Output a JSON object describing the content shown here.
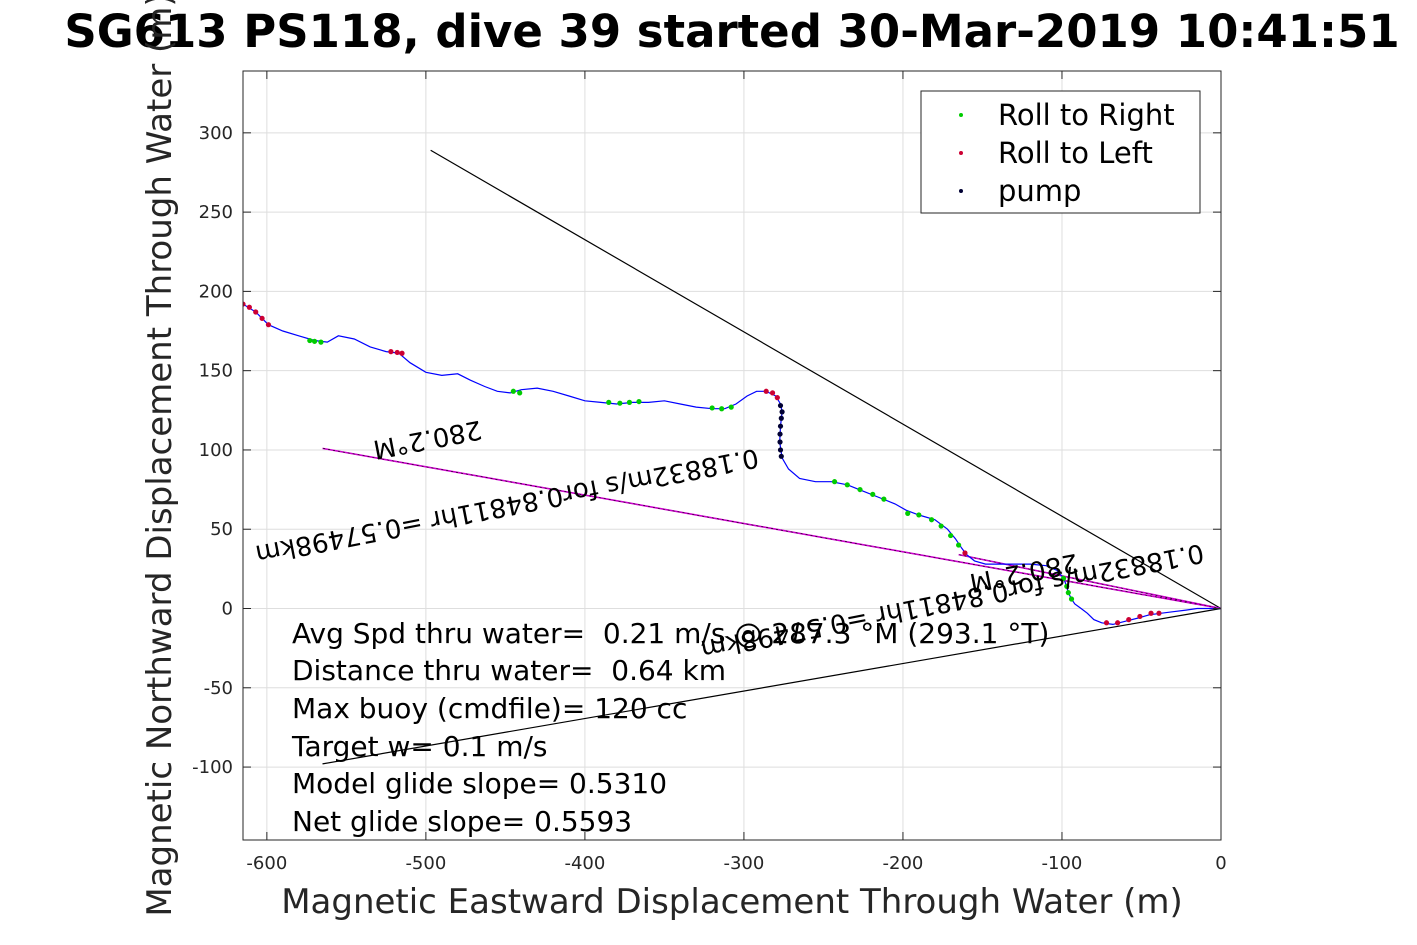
{
  "chart_data": {
    "type": "line",
    "title": "SG613 PS118, dive 39 started 30-Mar-2019 10:41:51",
    "xlabel": "Magnetic Eastward Displacement Through Water (m)",
    "ylabel": "Magnetic Northward Displacement Through Water (m)",
    "xlim": [
      -615,
      0
    ],
    "ylim": [
      -146,
      339
    ],
    "x_ticks": [
      -600,
      -500,
      -400,
      -300,
      -200,
      -100,
      0
    ],
    "y_ticks": [
      -100,
      -50,
      0,
      50,
      100,
      150,
      200,
      250,
      300
    ],
    "grid": true,
    "legend_position": "top-right",
    "legend": [
      "Roll to Right",
      "Roll to Left",
      "pump"
    ],
    "colors": {
      "track": "#0000ff",
      "roll_right": "#00cc00",
      "roll_left": "#cc0033",
      "pump": "#000033",
      "heading": "#cc00cc",
      "reference": "#000000"
    },
    "track": {
      "x": [
        -615,
        -607,
        -599,
        -590,
        -580,
        -570,
        -562,
        -555,
        -545,
        -535,
        -525,
        -517,
        -510,
        -500,
        -490,
        -480,
        -472,
        -463,
        -455,
        -447,
        -440,
        -430,
        -420,
        -410,
        -400,
        -390,
        -380,
        -370,
        -360,
        -350,
        -340,
        -330,
        -320,
        -312,
        -305,
        -298,
        -292,
        -286,
        -280,
        -277,
        -276,
        -277,
        -277.5,
        -276,
        -272,
        -265,
        -255,
        -245,
        -235,
        -225,
        -215,
        -205,
        -198,
        -190,
        -180,
        -172,
        -167,
        -163,
        -160,
        -155,
        -148,
        -140,
        -130,
        -120,
        -110,
        -103,
        -99,
        -97,
        -96,
        -94,
        -92,
        -88,
        -84,
        -80,
        -75,
        -68,
        -60,
        -52,
        -45,
        -38,
        -30,
        -22,
        -15,
        -8,
        0
      ],
      "y": [
        192,
        187,
        179,
        175,
        172,
        169,
        168,
        172,
        170,
        165,
        162,
        161,
        155,
        149,
        147,
        148,
        144,
        140,
        137,
        136,
        138,
        139,
        137,
        134,
        131,
        130,
        129,
        130,
        130,
        131,
        129,
        127,
        126,
        126,
        129,
        134,
        137,
        137,
        134,
        129,
        124,
        115,
        105,
        95,
        88,
        82,
        80,
        80,
        78,
        74,
        70,
        66,
        62,
        59,
        56,
        50,
        44,
        38,
        34,
        30,
        28,
        28,
        28,
        28,
        27,
        24,
        19,
        14,
        10,
        6,
        3,
        0,
        -3,
        -7,
        -9,
        -10,
        -8,
        -6,
        -4,
        -3,
        -2,
        -1,
        0,
        0,
        0
      ]
    },
    "roll_right_points": [
      {
        "x": -573,
        "y": 169
      },
      {
        "x": -570,
        "y": 168.5
      },
      {
        "x": -566,
        "y": 168
      },
      {
        "x": -445,
        "y": 137
      },
      {
        "x": -441,
        "y": 136
      },
      {
        "x": -385,
        "y": 130
      },
      {
        "x": -378,
        "y": 129.5
      },
      {
        "x": -372,
        "y": 130
      },
      {
        "x": -366,
        "y": 130.5
      },
      {
        "x": -320,
        "y": 126.5
      },
      {
        "x": -314,
        "y": 126
      },
      {
        "x": -308,
        "y": 127
      },
      {
        "x": -243,
        "y": 80
      },
      {
        "x": -235,
        "y": 78
      },
      {
        "x": -227,
        "y": 75
      },
      {
        "x": -219,
        "y": 72
      },
      {
        "x": -212,
        "y": 69
      },
      {
        "x": -197,
        "y": 60
      },
      {
        "x": -190,
        "y": 59
      },
      {
        "x": -182,
        "y": 56
      },
      {
        "x": -176,
        "y": 52
      },
      {
        "x": -170,
        "y": 46
      },
      {
        "x": -165,
        "y": 40
      },
      {
        "x": -99,
        "y": 19
      },
      {
        "x": -97,
        "y": 14
      },
      {
        "x": -96,
        "y": 10
      },
      {
        "x": -94,
        "y": 6
      }
    ],
    "roll_left_points": [
      {
        "x": -615,
        "y": 192
      },
      {
        "x": -611,
        "y": 190
      },
      {
        "x": -607,
        "y": 187
      },
      {
        "x": -603,
        "y": 183
      },
      {
        "x": -599,
        "y": 179
      },
      {
        "x": -522,
        "y": 162
      },
      {
        "x": -518,
        "y": 161.5
      },
      {
        "x": -515,
        "y": 161
      },
      {
        "x": -286,
        "y": 137
      },
      {
        "x": -282,
        "y": 136
      },
      {
        "x": -279,
        "y": 133
      },
      {
        "x": -161,
        "y": 35
      },
      {
        "x": -72,
        "y": -9
      },
      {
        "x": -65,
        "y": -9
      },
      {
        "x": -58,
        "y": -7
      },
      {
        "x": -51,
        "y": -5
      },
      {
        "x": -44,
        "y": -3
      },
      {
        "x": -39,
        "y": -3
      }
    ],
    "pump_points": [
      {
        "x": -277,
        "y": 128
      },
      {
        "x": -276,
        "y": 124
      },
      {
        "x": -276.5,
        "y": 120
      },
      {
        "x": -277,
        "y": 115
      },
      {
        "x": -277.3,
        "y": 110
      },
      {
        "x": -277.3,
        "y": 105
      },
      {
        "x": -277,
        "y": 100
      },
      {
        "x": -276.5,
        "y": 96
      }
    ],
    "reference_lines": [
      {
        "x": [
          0,
          -497
        ],
        "y": [
          0,
          289
        ]
      },
      {
        "x": [
          0,
          -565
        ],
        "y": [
          0,
          -98
        ]
      }
    ],
    "heading_lines": [
      {
        "x": [
          0,
          -565
        ],
        "y": [
          0,
          101
        ]
      },
      {
        "x": [
          0,
          -165
        ],
        "y": [
          0,
          34
        ]
      }
    ],
    "annotations": [
      {
        "text": "280.2°M",
        "x": -500,
        "y": 112,
        "rotation": 169
      },
      {
        "text": "0.18832m/s for0.84811hr =0.57498km",
        "x": -450,
        "y": 70,
        "rotation": 169
      },
      {
        "text": "280.2°M",
        "x": -125,
        "y": 28,
        "rotation": 169
      },
      {
        "text": "0.18832m/s for0.84811hr =0.57498km",
        "x": -170,
        "y": 10,
        "rotation": 169
      }
    ],
    "stats": [
      "Avg Spd thru water=  0.21 m/s @ 287.3 °M (293.1 °T)",
      "Distance thru water=  0.64 km",
      "Max buoy (cmdfile)= 120 cc",
      "Target w= 0.1 m/s",
      "Model glide slope= 0.5310",
      "Net glide slope= 0.5593"
    ]
  }
}
